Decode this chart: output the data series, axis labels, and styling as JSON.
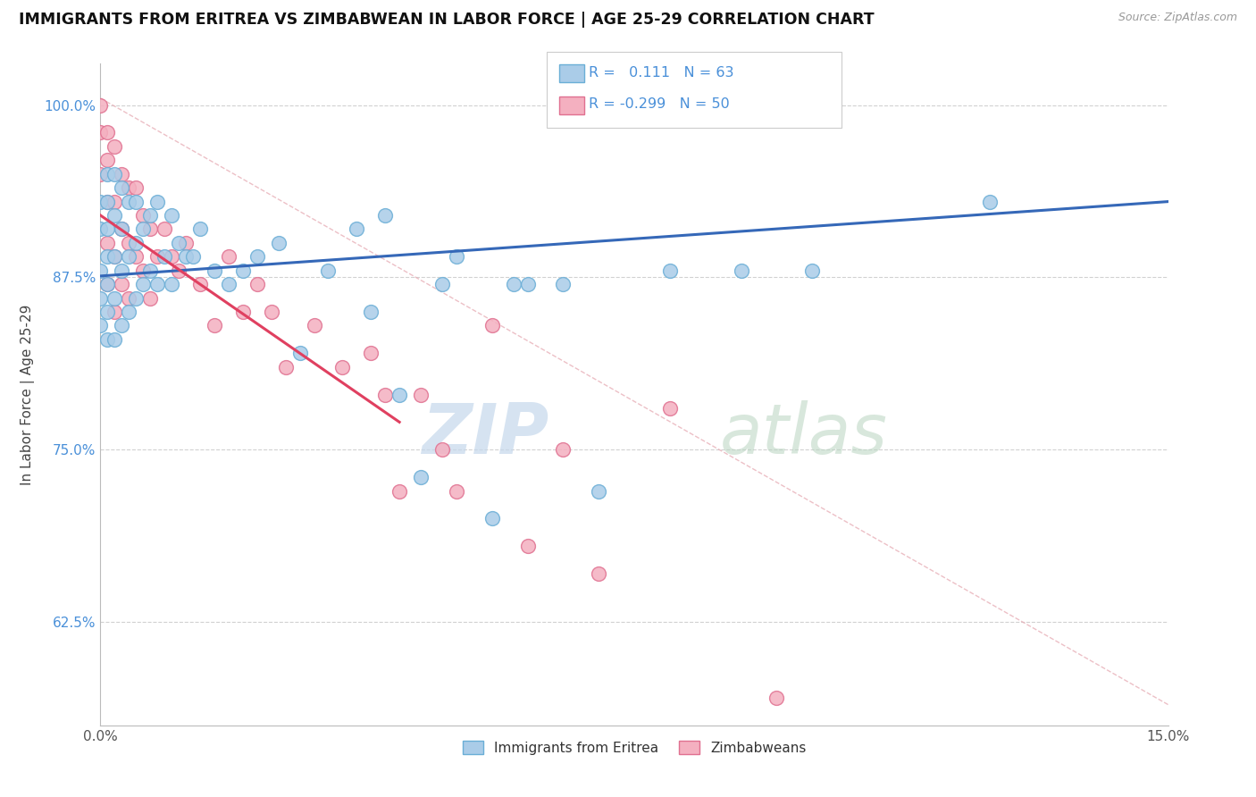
{
  "title": "IMMIGRANTS FROM ERITREA VS ZIMBABWEAN IN LABOR FORCE | AGE 25-29 CORRELATION CHART",
  "source_text": "Source: ZipAtlas.com",
  "ylabel": "In Labor Force | Age 25-29",
  "xlim": [
    0.0,
    0.15
  ],
  "ylim": [
    0.55,
    1.03
  ],
  "xticks": [
    0.0,
    0.15
  ],
  "xtick_labels": [
    "0.0%",
    "15.0%"
  ],
  "yticks": [
    0.625,
    0.75,
    0.875,
    1.0
  ],
  "ytick_labels": [
    "62.5%",
    "75.0%",
    "87.5%",
    "100.0%"
  ],
  "R_eritrea": 0.111,
  "N_eritrea": 63,
  "R_zimbabwe": -0.299,
  "N_zimbabwe": 50,
  "eritrea_color": "#aacce8",
  "eritrea_edge": "#6aaed6",
  "zimbabwe_color": "#f4b0c0",
  "zimbabwe_edge": "#e07090",
  "eritrea_line_color": "#3568b8",
  "zimbabwe_line_color": "#e04060",
  "background_color": "#ffffff",
  "legend_labels": [
    "Immigrants from Eritrea",
    "Zimbabweans"
  ],
  "scatter_eritrea_x": [
    0.0,
    0.0,
    0.0,
    0.0,
    0.0,
    0.001,
    0.001,
    0.001,
    0.001,
    0.001,
    0.001,
    0.001,
    0.002,
    0.002,
    0.002,
    0.002,
    0.002,
    0.003,
    0.003,
    0.003,
    0.003,
    0.004,
    0.004,
    0.004,
    0.005,
    0.005,
    0.005,
    0.006,
    0.006,
    0.007,
    0.007,
    0.008,
    0.008,
    0.009,
    0.01,
    0.01,
    0.011,
    0.012,
    0.013,
    0.014,
    0.016,
    0.018,
    0.02,
    0.022,
    0.025,
    0.028,
    0.032,
    0.036,
    0.038,
    0.04,
    0.042,
    0.045,
    0.048,
    0.05,
    0.055,
    0.058,
    0.06,
    0.065,
    0.07,
    0.08,
    0.09,
    0.1,
    0.125
  ],
  "scatter_eritrea_y": [
    0.93,
    0.91,
    0.88,
    0.86,
    0.84,
    0.95,
    0.93,
    0.91,
    0.89,
    0.87,
    0.85,
    0.83,
    0.95,
    0.92,
    0.89,
    0.86,
    0.83,
    0.94,
    0.91,
    0.88,
    0.84,
    0.93,
    0.89,
    0.85,
    0.93,
    0.9,
    0.86,
    0.91,
    0.87,
    0.92,
    0.88,
    0.93,
    0.87,
    0.89,
    0.92,
    0.87,
    0.9,
    0.89,
    0.89,
    0.91,
    0.88,
    0.87,
    0.88,
    0.89,
    0.9,
    0.82,
    0.88,
    0.91,
    0.85,
    0.92,
    0.79,
    0.73,
    0.87,
    0.89,
    0.7,
    0.87,
    0.87,
    0.87,
    0.72,
    0.88,
    0.88,
    0.88,
    0.93
  ],
  "scatter_zimbabwe_x": [
    0.0,
    0.0,
    0.0,
    0.001,
    0.001,
    0.001,
    0.001,
    0.001,
    0.002,
    0.002,
    0.002,
    0.002,
    0.003,
    0.003,
    0.003,
    0.004,
    0.004,
    0.004,
    0.005,
    0.005,
    0.006,
    0.006,
    0.007,
    0.007,
    0.008,
    0.009,
    0.01,
    0.011,
    0.012,
    0.014,
    0.016,
    0.018,
    0.02,
    0.022,
    0.024,
    0.026,
    0.03,
    0.034,
    0.038,
    0.04,
    0.042,
    0.045,
    0.048,
    0.05,
    0.055,
    0.06,
    0.065,
    0.07,
    0.08,
    0.095
  ],
  "scatter_zimbabwe_y": [
    1.0,
    0.98,
    0.95,
    0.98,
    0.96,
    0.93,
    0.9,
    0.87,
    0.97,
    0.93,
    0.89,
    0.85,
    0.95,
    0.91,
    0.87,
    0.94,
    0.9,
    0.86,
    0.94,
    0.89,
    0.92,
    0.88,
    0.91,
    0.86,
    0.89,
    0.91,
    0.89,
    0.88,
    0.9,
    0.87,
    0.84,
    0.89,
    0.85,
    0.87,
    0.85,
    0.81,
    0.84,
    0.81,
    0.82,
    0.79,
    0.72,
    0.79,
    0.75,
    0.72,
    0.84,
    0.68,
    0.75,
    0.66,
    0.78,
    0.57
  ],
  "eritrea_line_x": [
    0.0,
    0.15
  ],
  "eritrea_line_y": [
    0.876,
    0.93
  ],
  "zimbabwe_line_x": [
    0.0,
    0.042
  ],
  "zimbabwe_line_y": [
    0.92,
    0.77
  ],
  "ref_line_x": [
    0.0,
    0.15
  ],
  "ref_line_y": [
    1.005,
    0.565
  ]
}
